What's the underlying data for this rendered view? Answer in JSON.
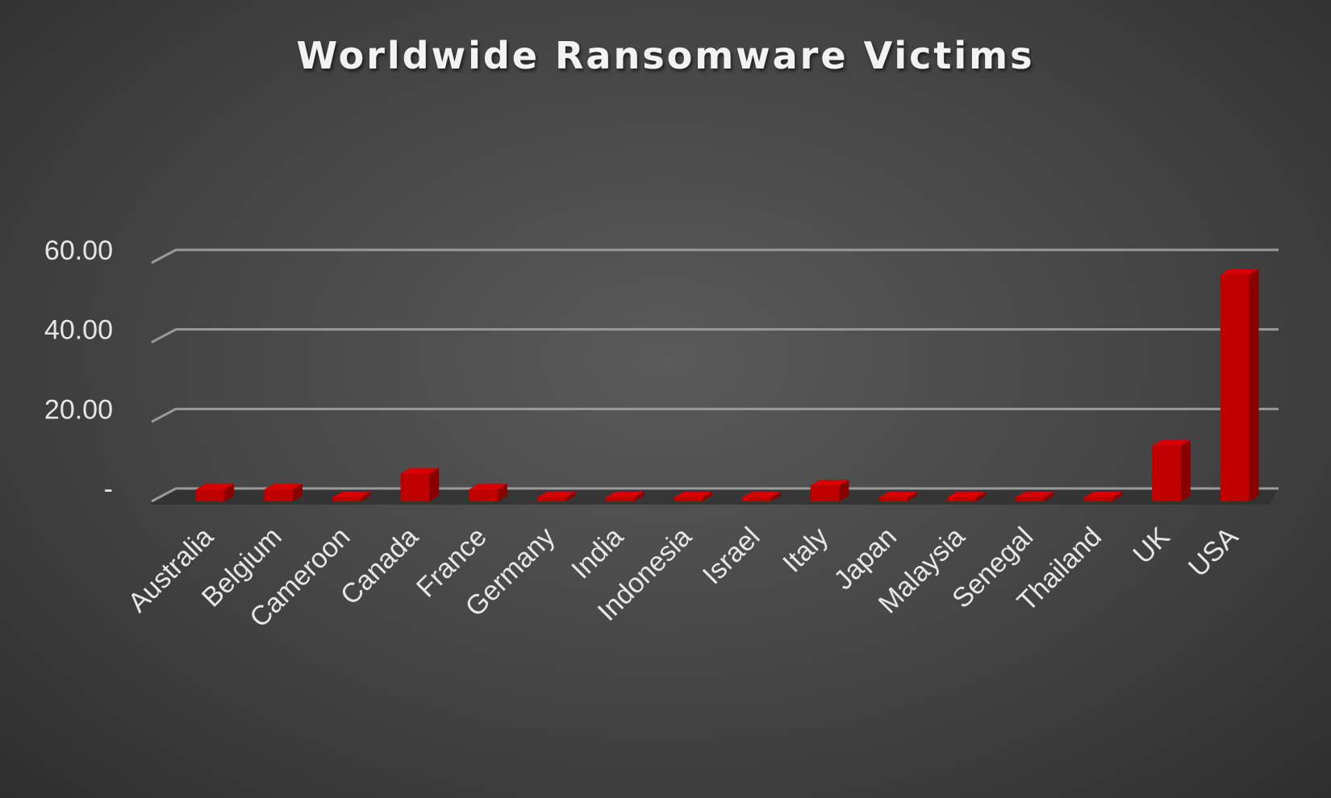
{
  "chart_data": {
    "type": "bar",
    "title": "Worldwide Ransomware Victims",
    "categories": [
      "Australia",
      "Belgium",
      "Cameroon",
      "Canada",
      "France",
      "Germany",
      "India",
      "Indonesia",
      "Israel",
      "Italy",
      "Japan",
      "Malaysia",
      "Senegal",
      "Thailand",
      "UK",
      "USA"
    ],
    "values": [
      3,
      3,
      1,
      7,
      3,
      1,
      1,
      1,
      1,
      4,
      1,
      1,
      1,
      1,
      14,
      57
    ],
    "yticks": [
      "-",
      "20.00",
      "40.00",
      "60.00"
    ],
    "ylim": [
      0,
      60
    ],
    "grid": true,
    "colors": {
      "bar_front": "#c00000",
      "bar_top": "#d80000",
      "bar_side": "#8a0000"
    }
  }
}
